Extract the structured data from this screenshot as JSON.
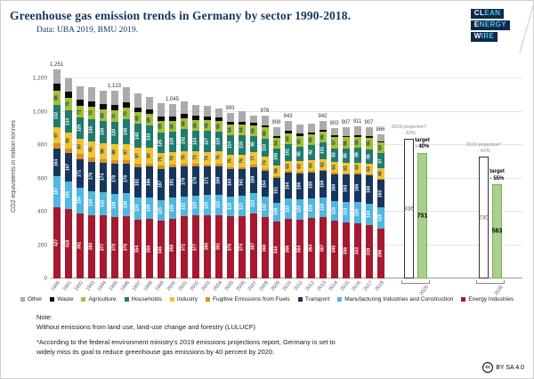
{
  "header": {
    "title": "Greenhouse gas emission trends in Germany by sector 1990-2018.",
    "subtitle": "Data: UBA 2019, BMU 2019.",
    "logo": {
      "lines": [
        {
          "strong": "CL",
          "rest": "EAN"
        },
        {
          "strong": "E",
          "rest": "NERGY"
        },
        {
          "strong": "W",
          "rest": "IRE"
        }
      ]
    }
  },
  "colors": {
    "brand_navy": "#14365C",
    "brand_cyan": "#53C3E9",
    "target_green": "#A9D08E"
  },
  "chart_data": {
    "type": "bar",
    "stacked": true,
    "title": "Greenhouse gas emission trends in Germany by sector 1990-2018",
    "ylabel": "CO2 equivalents in million tonnes",
    "ylim": [
      0,
      1200
    ],
    "yticks": [
      "0",
      "200",
      "400",
      "600",
      "800",
      "1,000",
      "1,200"
    ],
    "grid": true,
    "years": [
      "1990",
      "1991",
      "1992",
      "1993",
      "1994",
      "1995",
      "1996",
      "1997",
      "1998",
      "1999",
      "2000",
      "2001",
      "2002",
      "2003",
      "2004",
      "2005",
      "2006",
      "2007",
      "2008",
      "2009",
      "2010",
      "2011",
      "2012",
      "2013",
      "2014",
      "2015",
      "2016",
      "2017",
      "2018"
    ],
    "total_labels": [
      "1,251",
      null,
      null,
      null,
      null,
      "1,123",
      null,
      null,
      null,
      null,
      "1,045",
      null,
      null,
      null,
      null,
      "993",
      null,
      null,
      "976",
      "908",
      "943",
      null,
      null,
      "942",
      "903",
      "907",
      "911",
      "907",
      "866"
    ],
    "series": [
      {
        "name": "Energy Industries",
        "key": "energy-industries",
        "color": "#A6192E",
        "label_color": "#ffffff",
        "labels_on": true,
        "values": [
          427,
          418,
          391,
          380,
          377,
          370,
          375,
          354,
          356,
          345,
          358,
          371,
          377,
          380,
          381,
          375,
          374,
          387,
          368,
          344,
          356,
          354,
          364,
          367,
          348,
          336,
          333,
          319,
          298
        ]
      },
      {
        "name": "Manufacturing Industries and Construction",
        "key": "manufacturing-industries-and-construction",
        "color": "#4FB7E0",
        "label_color": "#ffffff",
        "labels_on": true,
        "values": [
          187,
          165,
          155,
          144,
          142,
          139,
          136,
          134,
          129,
          125,
          126,
          122,
          120,
          120,
          122,
          118,
          121,
          123,
          122,
          108,
          123,
          122,
          118,
          118,
          118,
          123,
          126,
          130,
          129
        ]
      },
      {
        "name": "Transport",
        "key": "transport",
        "color": "#17365D",
        "label_color": "#ffffff",
        "labels_on": true,
        "values": [
          164,
          167,
          171,
          176,
          174,
          178,
          176,
          181,
          186,
          187,
          181,
          178,
          176,
          171,
          169,
          163,
          161,
          159,
          154,
          151,
          154,
          156,
          155,
          159,
          160,
          163,
          166,
          168,
          163
        ]
      },
      {
        "name": "Fugitive Emissions from Fuels",
        "key": "fugitive-emissions-from-fuels",
        "color": "#D78F21",
        "label_color": "#17365D",
        "labels_on": false,
        "values": [
          33,
          30,
          28,
          26,
          24,
          22,
          21,
          20,
          19,
          18,
          17,
          16,
          15,
          14,
          14,
          13,
          12,
          12,
          11,
          10,
          10,
          10,
          9,
          9,
          9,
          9,
          8,
          8,
          8
        ]
      },
      {
        "name": "Industry",
        "key": "industry",
        "color": "#F1C232",
        "label_color": "#17365D",
        "labels_on": true,
        "values": [
          97,
          93,
          93,
          95,
          96,
          99,
          97,
          97,
          94,
          75,
          78,
          75,
          73,
          74,
          75,
          75,
          76,
          77,
          74,
          66,
          63,
          63,
          63,
          62,
          63,
          61,
          63,
          63,
          65
        ]
      },
      {
        "name": "Households",
        "key": "households",
        "color": "#1E7B6E",
        "label_color": "#ffffff",
        "labels_on": true,
        "values": [
          132,
          134,
          125,
          136,
          130,
          130,
          148,
          140,
          133,
          125,
          118,
          132,
          124,
          127,
          119,
          114,
          115,
          95,
          110,
          100,
          101,
          85,
          92,
          101,
          83,
          88,
          89,
          88,
          87
        ]
      },
      {
        "name": "Agriculture",
        "key": "agriculture",
        "color": "#A2C037",
        "label_color": "#17365D",
        "labels_on": true,
        "values": [
          88,
          75,
          71,
          70,
          69,
          70,
          70,
          69,
          69,
          69,
          68,
          68,
          66,
          65,
          65,
          64,
          64,
          65,
          66,
          64,
          64,
          65,
          65,
          66,
          67,
          66,
          65,
          65,
          64
        ]
      },
      {
        "name": "Waste",
        "key": "waste",
        "color": "#0A0A0A",
        "label_color": "#ffffff",
        "labels_on": false,
        "values": [
          38,
          37,
          36,
          35,
          34,
          32,
          31,
          30,
          28,
          27,
          25,
          24,
          23,
          21,
          19,
          17,
          16,
          15,
          14,
          12,
          12,
          12,
          11,
          11,
          11,
          10,
          10,
          10,
          10
        ]
      },
      {
        "name": "Other",
        "key": "other",
        "color": "#ABABAB",
        "label_color": "#333333",
        "labels_on": false,
        "values": [
          85,
          82,
          84,
          83,
          80,
          83,
          92,
          84,
          72,
          82,
          74,
          76,
          66,
          61,
          57,
          54,
          62,
          44,
          57,
          53,
          60,
          55,
          49,
          49,
          44,
          51,
          51,
          56,
          42
        ]
      }
    ],
    "targets": [
      {
        "year": "2020",
        "projection": {
          "value": 836,
          "caption": [
            "2019 projection*",
            "- 33%"
          ]
        },
        "target": {
          "value": 751,
          "caption": [
            "target",
            "- 40%"
          ]
        }
      },
      {
        "year": "2030",
        "projection": {
          "value": 730,
          "caption": [
            "2019 projection*",
            "- 42%"
          ]
        },
        "target": {
          "value": 563,
          "caption": [
            "target",
            "- 55%"
          ]
        }
      }
    ]
  },
  "legend": {
    "items": [
      {
        "label": "Other",
        "key": "other",
        "color": "#ABABAB"
      },
      {
        "label": "Waste",
        "key": "waste",
        "color": "#0A0A0A"
      },
      {
        "label": "Agriculture",
        "key": "agriculture",
        "color": "#A2C037"
      },
      {
        "label": "Households",
        "key": "households",
        "color": "#1E7B6E"
      },
      {
        "label": "Industry",
        "key": "industry",
        "color": "#F1C232"
      },
      {
        "label": "Fugitive Emissions from Fuels",
        "key": "fugitive-emissions-from-fuels",
        "color": "#D78F21"
      },
      {
        "label": "Transport",
        "key": "transport",
        "color": "#17365D"
      },
      {
        "label": "Manufacturing Industries and Construction",
        "key": "manufacturing-industries-and-construction",
        "color": "#4FB7E0"
      },
      {
        "label": "Energy Industries",
        "key": "energy-industries",
        "color": "#A6192E"
      }
    ]
  },
  "notes": {
    "lines": [
      "Note:",
      "Without emissions from land use, land-use change and forestry (LULUCF)",
      "",
      "*According to the federal environment ministry's 2019 emissions projections report, Germany is set to",
      "widely miss its goal to reduce greenhouse gas emissions by 40 percent by 2020."
    ]
  },
  "footer": {
    "cc_glyph": "cc",
    "license": "BY SA 4.0"
  }
}
